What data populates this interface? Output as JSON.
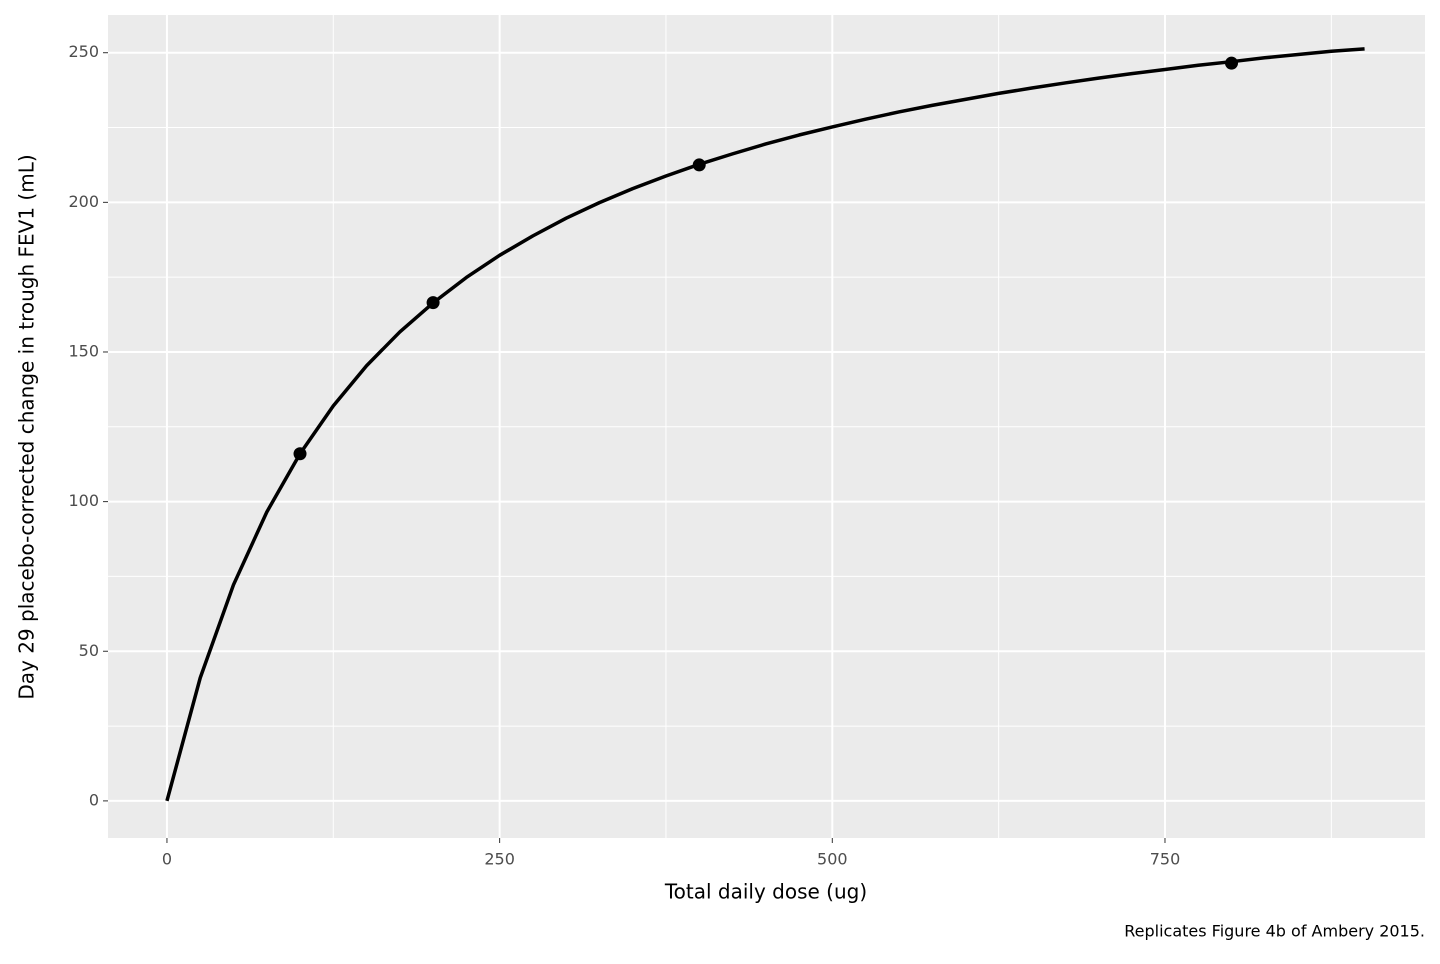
{
  "chart_data": {
    "type": "line",
    "x_label": "Total daily dose (ug)",
    "y_label": "Day 29 placebo-corrected change in trough FEV1 (mL)",
    "caption": "Replicates Figure 4b of Ambery 2015.",
    "xlim": [
      -44.3,
      945.4
    ],
    "ylim": [
      -12.4,
      262.6
    ],
    "xticks": [
      0,
      250,
      500,
      750
    ],
    "yticks": [
      0,
      50,
      100,
      150,
      200,
      250
    ],
    "grid": true,
    "series": [
      {
        "style": "line",
        "color": "#000000",
        "x": [
          0,
          25,
          50,
          75,
          100,
          125,
          150,
          175,
          200,
          225,
          250,
          275,
          300,
          325,
          350,
          375,
          400,
          425,
          450,
          475,
          500,
          525,
          550,
          575,
          600,
          625,
          650,
          675,
          700,
          725,
          750,
          775,
          800,
          825,
          850,
          875,
          900
        ],
        "values": [
          0,
          41.1,
          72.2,
          96.5,
          116.0,
          132.0,
          145.4,
          156.7,
          166.4,
          174.9,
          182.3,
          188.8,
          194.7,
          199.9,
          204.6,
          208.8,
          212.7,
          216.2,
          219.5,
          222.5,
          225.2,
          227.8,
          230.2,
          232.4,
          234.4,
          236.4,
          238.2,
          239.9,
          241.5,
          243.0,
          244.4,
          245.8,
          247.0,
          248.3,
          249.4,
          250.5,
          251.3
        ]
      },
      {
        "style": "point",
        "color": "#000000",
        "x": [
          100,
          200,
          400,
          800
        ],
        "values": [
          116.0,
          166.5,
          212.5,
          246.5
        ]
      }
    ]
  }
}
